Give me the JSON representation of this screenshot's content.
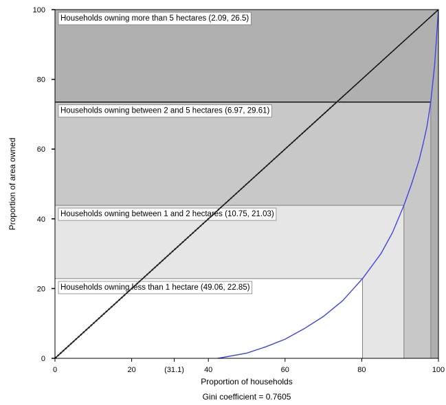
{
  "chart_data": {
    "type": "area",
    "title": "",
    "xlabel": "Proportion of households",
    "ylabel": "Proportion of area owned",
    "footnote": "Gini coefficient = 0.7605",
    "xlim": [
      0,
      100
    ],
    "ylim": [
      0,
      100
    ],
    "x_ticks": [
      {
        "value": 0,
        "label": "0"
      },
      {
        "value": 20,
        "label": "20"
      },
      {
        "value": 31.1,
        "label": "(31.1)"
      },
      {
        "value": 40,
        "label": "40"
      },
      {
        "value": 60,
        "label": "60"
      },
      {
        "value": 80,
        "label": "80"
      },
      {
        "value": 100,
        "label": "100"
      }
    ],
    "y_ticks": [
      {
        "value": 0,
        "label": "0"
      },
      {
        "value": 20,
        "label": "20"
      },
      {
        "value": 40,
        "label": "40"
      },
      {
        "value": 60,
        "label": "60"
      },
      {
        "value": 80,
        "label": "80"
      },
      {
        "value": 100,
        "label": "100"
      }
    ],
    "bands": [
      {
        "label": "Households owning less than 1 hectare (49.06, 22.85)",
        "y_from": 0,
        "y_to": 22.85,
        "x_cut": 80.2,
        "fill": "#ffffff",
        "strip_fill": "#e6e6e6"
      },
      {
        "label": "Households owning between 1 and 2 hectares (10.75, 21.03)",
        "y_from": 22.85,
        "y_to": 43.88,
        "x_cut": 91.0,
        "fill": "#e6e6e6",
        "strip_fill": "#c8c8c8"
      },
      {
        "label": "Households owning between 2 and 5 hectares (6.97, 29.61)",
        "y_from": 43.88,
        "y_to": 73.49,
        "x_cut": 98.0,
        "fill": "#c8c8c8",
        "strip_fill": "#b0b0b0"
      },
      {
        "label": "Households owning more than 5 hectares (2.09, 26.5)",
        "y_from": 73.49,
        "y_to": 100,
        "x_cut": 100,
        "fill": "#b0b0b0",
        "strip_fill": "#b0b0b0"
      }
    ],
    "series": [
      {
        "name": "",
        "type": "line",
        "color": "#000000",
        "x": [
          0,
          100
        ],
        "y": [
          0,
          100
        ]
      },
      {
        "name": "",
        "type": "line",
        "color": "#3c46dc",
        "x": [
          42.5,
          50,
          55,
          60,
          65,
          70,
          75,
          80.2,
          85,
          88,
          91,
          93,
          95,
          96,
          97,
          98,
          99,
          100
        ],
        "y": [
          0,
          1.5,
          3.3,
          5.5,
          8.5,
          12,
          16.5,
          22.85,
          30,
          36,
          43.88,
          50,
          57,
          61.5,
          66.5,
          73.49,
          84,
          100
        ]
      }
    ],
    "grid": false,
    "legend": "none"
  }
}
